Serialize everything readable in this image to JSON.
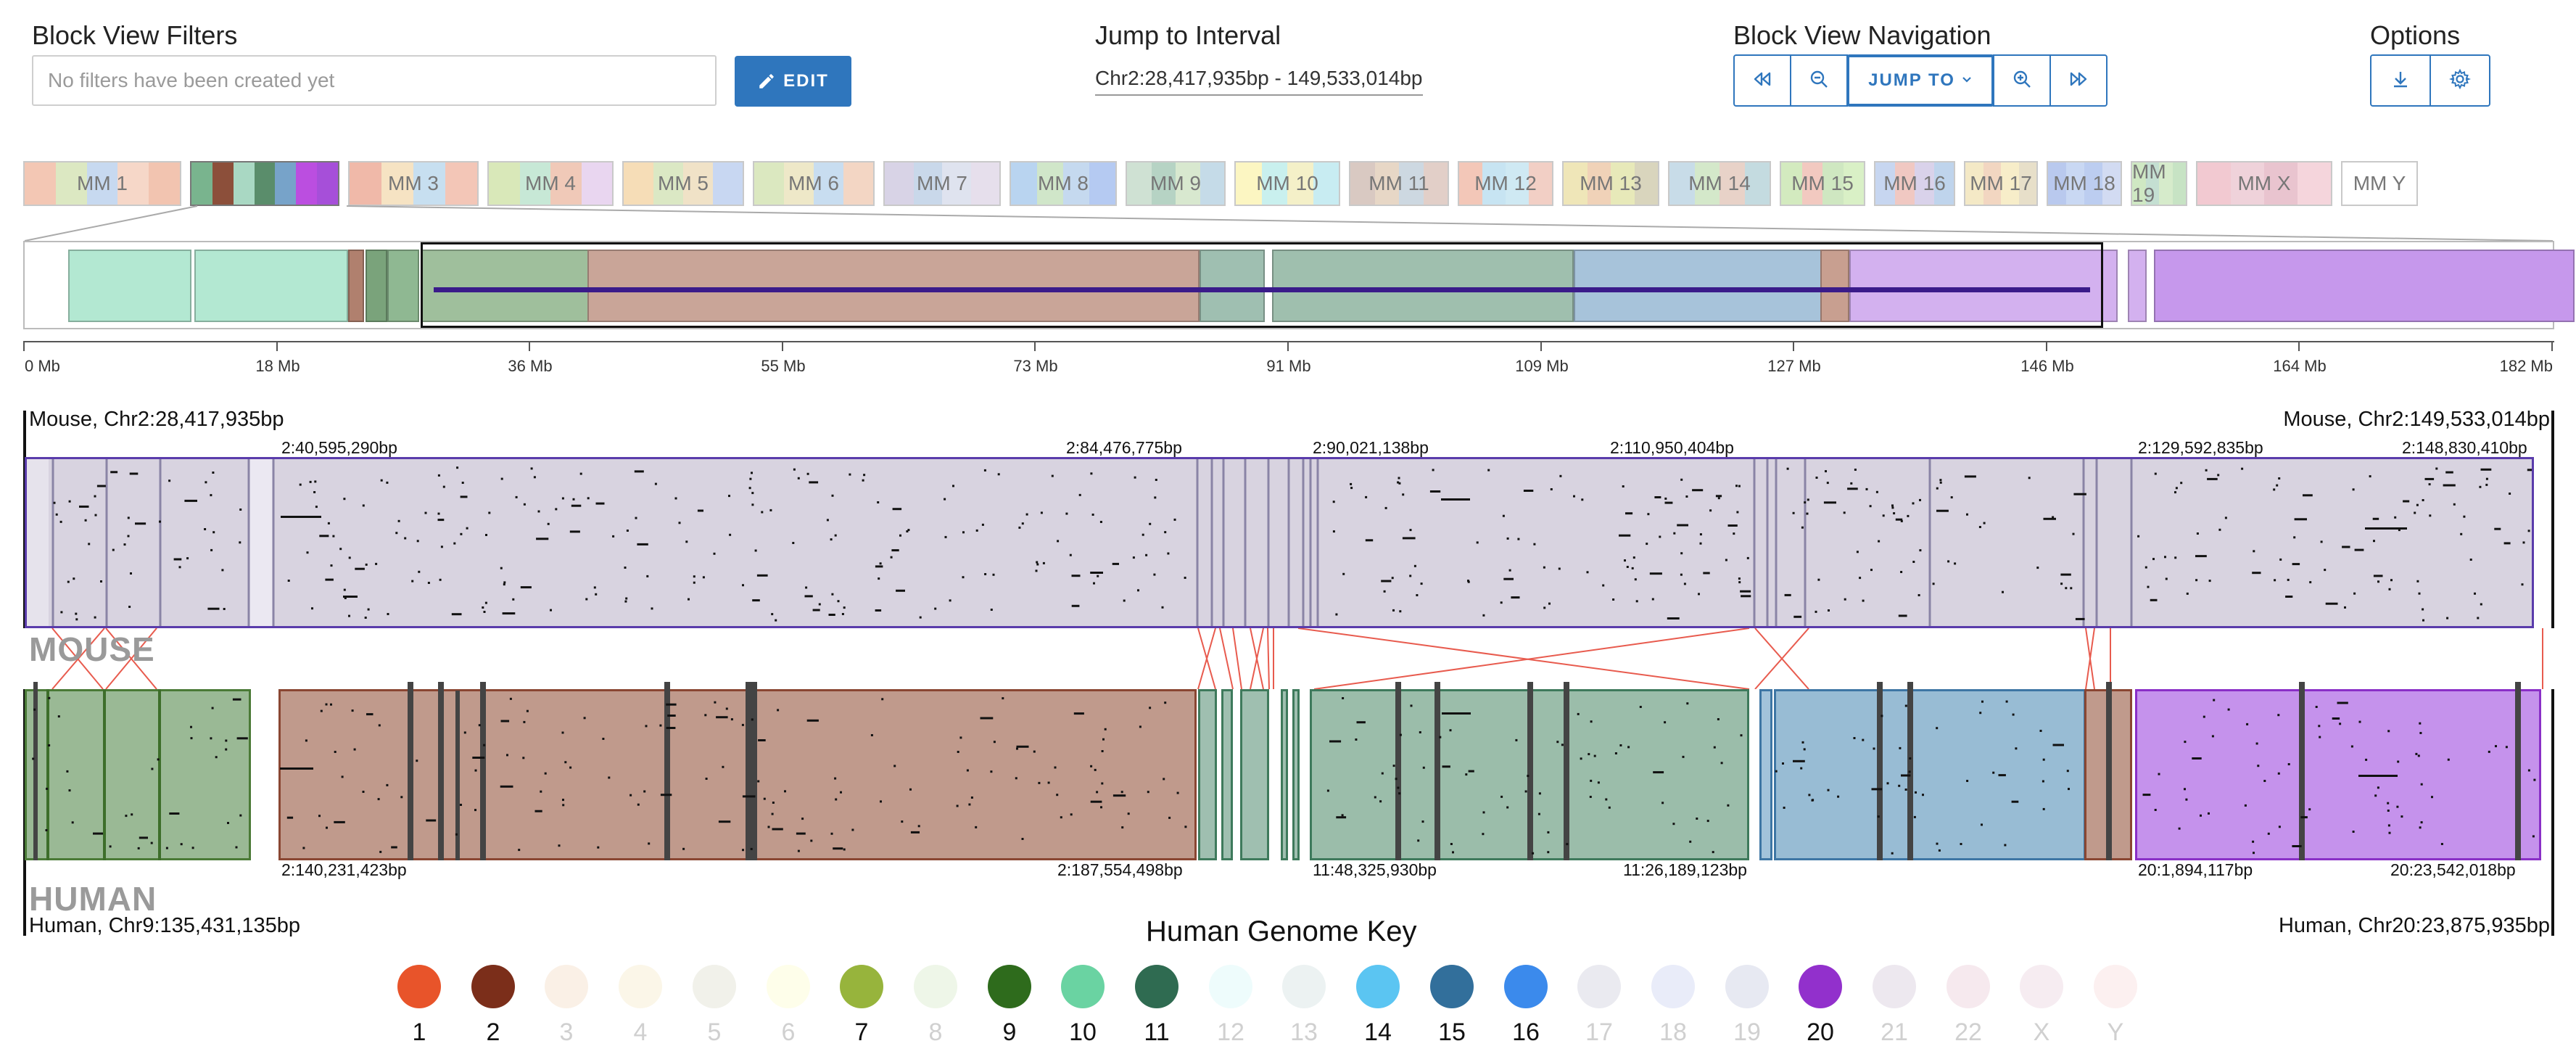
{
  "filters": {
    "title": "Block View Filters",
    "placeholder": "No filters have been created yet",
    "edit_label": "EDIT"
  },
  "jump": {
    "title": "Jump to Interval",
    "interval": "Chr2:28,417,935bp - 149,533,014bp"
  },
  "navigation": {
    "title": "Block View Navigation",
    "jump_label": "JUMP TO",
    "buttons": [
      "step-back-icon",
      "zoom-out-icon",
      "jump-to",
      "zoom-in-icon",
      "step-forward-icon"
    ]
  },
  "options": {
    "title": "Options",
    "buttons": [
      "download-icon",
      "gear-icon"
    ]
  },
  "chromosomes": [
    {
      "label": "MM 1",
      "colors": [
        "#f3c7b4",
        "#dce8c2",
        "#c7d9f0",
        "#f6d7c8",
        "#f2c4b0"
      ]
    },
    {
      "label": "",
      "colors": [
        "#79b48e",
        "#8c4f3a",
        "#a9d8c3",
        "#5a8d6b",
        "#77a3c9",
        "#bb4ee0",
        "#a64fd9"
      ],
      "selected": true
    },
    {
      "label": "MM 3",
      "colors": [
        "#f0b9a9",
        "#f6e3c3",
        "#c7dff0",
        "#f3c6b7"
      ]
    },
    {
      "label": "MM 4",
      "colors": [
        "#d9e8b9",
        "#c7e8d6",
        "#f0c9b8",
        "#e9d6f0"
      ]
    },
    {
      "label": "MM 5",
      "colors": [
        "#f6ddb7",
        "#dbe8c4",
        "#f0e2c7",
        "#c8d7f2"
      ]
    },
    {
      "label": "MM 6",
      "colors": [
        "#dbe8c0",
        "#eee8c8",
        "#c8ddf0",
        "#f3d6c4"
      ]
    },
    {
      "label": "MM 7",
      "colors": [
        "#d8d3e6",
        "#c9d8ea",
        "#dfe3ef",
        "#e6dfec"
      ]
    },
    {
      "label": "MM 8",
      "colors": [
        "#b9d4f0",
        "#d0e6c9",
        "#c5d9ef",
        "#b5caf2"
      ]
    },
    {
      "label": "MM 9",
      "colors": [
        "#cfe1d3",
        "#b6d3c4",
        "#d8e8cf",
        "#c5dbe8"
      ]
    },
    {
      "label": "MM 10",
      "colors": [
        "#fcf6c2",
        "#c9f0ee",
        "#f4f0c8",
        "#c8ecf2"
      ]
    },
    {
      "label": "MM 11",
      "colors": [
        "#d9c9c2",
        "#e7d7c6",
        "#cdd8e1",
        "#e2cfc8"
      ]
    },
    {
      "label": "MM 12",
      "colors": [
        "#f3c7b8",
        "#c7e4f2",
        "#cfe9f3",
        "#f2cfc5"
      ]
    },
    {
      "label": "MM 13",
      "colors": [
        "#efe6b8",
        "#f0d2b8",
        "#e7e9b9",
        "#d9d5bd"
      ]
    },
    {
      "label": "MM 14",
      "colors": [
        "#c8dce8",
        "#d4e8ca",
        "#e8d2c8",
        "#c4dbe0"
      ]
    },
    {
      "label": "MM 15",
      "colors": [
        "#d3eabf",
        "#f2c9c0",
        "#cfe7c1",
        "#d9f0c6"
      ]
    },
    {
      "label": "MM 16",
      "colors": [
        "#c7d6f0",
        "#f0c8c2",
        "#d9d2ea",
        "#bfd4ec"
      ]
    },
    {
      "label": "MM 17",
      "colors": [
        "#f4e9c6",
        "#f2d6c1",
        "#f7edc9",
        "#e7dfc9"
      ]
    },
    {
      "label": "MM 18",
      "colors": [
        "#b9c9ee",
        "#c9d8f3",
        "#bccdf0",
        "#d2dbf2"
      ]
    },
    {
      "label": "MM 19",
      "colors": [
        "#cfe8c3",
        "#c4dfd2",
        "#d6ebcb",
        "#c7e3c4"
      ]
    },
    {
      "label": "MM X",
      "colors": [
        "#f2c9d1",
        "#efd2da",
        "#e9c4cf",
        "#f5d5dc"
      ]
    },
    {
      "label": "MM Y",
      "colors": [
        "#ffffff",
        "#ffffff"
      ]
    }
  ],
  "overview_axis": [
    "0 Mb",
    "18 Mb",
    "36 Mb",
    "55 Mb",
    "73 Mb",
    "91 Mb",
    "109 Mb",
    "127 Mb",
    "146 Mb",
    "164 Mb",
    "182 Mb"
  ],
  "mouse": {
    "genome_label": "MOUSE",
    "left_label": "Mouse, Chr2:28,417,935bp",
    "right_label": "Mouse, Chr2:149,533,014bp",
    "coords": [
      "2:40,595,290bp",
      "2:84,476,775bp",
      "2:90,021,138bp",
      "2:110,950,404bp",
      "2:129,592,835bp",
      "2:148,830,410bp"
    ]
  },
  "human": {
    "genome_label": "HUMAN",
    "left_label": "Human, Chr9:135,431,135bp",
    "right_label": "Human, Chr20:23,875,935bp",
    "coords": [
      "2:140,231,423bp",
      "2:187,554,498bp",
      "11:48,325,930bp",
      "11:26,189,123bp",
      "20:1,894,117bp",
      "20:23,542,018bp"
    ]
  },
  "key": {
    "title": "Human Genome Key",
    "items": [
      {
        "label": "1",
        "color": "#e8542a",
        "active": true
      },
      {
        "label": "2",
        "color": "#7b2e1a",
        "active": true
      },
      {
        "label": "3",
        "color": "#faf0e6",
        "active": false
      },
      {
        "label": "4",
        "color": "#fbf6e8",
        "active": false
      },
      {
        "label": "5",
        "color": "#f1f1ea",
        "active": false
      },
      {
        "label": "6",
        "color": "#fefeea",
        "active": false
      },
      {
        "label": "7",
        "color": "#97b43c",
        "active": true
      },
      {
        "label": "8",
        "color": "#eef6e8",
        "active": false
      },
      {
        "label": "9",
        "color": "#2e6b1c",
        "active": true
      },
      {
        "label": "10",
        "color": "#6ad3a2",
        "active": true
      },
      {
        "label": "11",
        "color": "#2f6b51",
        "active": true
      },
      {
        "label": "12",
        "color": "#eefcfc",
        "active": false
      },
      {
        "label": "13",
        "color": "#ecf2f2",
        "active": false
      },
      {
        "label": "14",
        "color": "#5bc5f2",
        "active": true
      },
      {
        "label": "15",
        "color": "#326f9b",
        "active": true
      },
      {
        "label": "16",
        "color": "#3b8aec",
        "active": true
      },
      {
        "label": "17",
        "color": "#eaeaf0",
        "active": false
      },
      {
        "label": "18",
        "color": "#e9ecf9",
        "active": false
      },
      {
        "label": "19",
        "color": "#e7e9f2",
        "active": false
      },
      {
        "label": "20",
        "color": "#9230cc",
        "active": true
      },
      {
        "label": "21",
        "color": "#ede8ef",
        "active": false
      },
      {
        "label": "22",
        "color": "#f6e9ee",
        "active": false
      },
      {
        "label": "X",
        "color": "#f6ecf1",
        "active": false
      },
      {
        "label": "Y",
        "color": "#fcf0f0",
        "active": false
      }
    ]
  }
}
